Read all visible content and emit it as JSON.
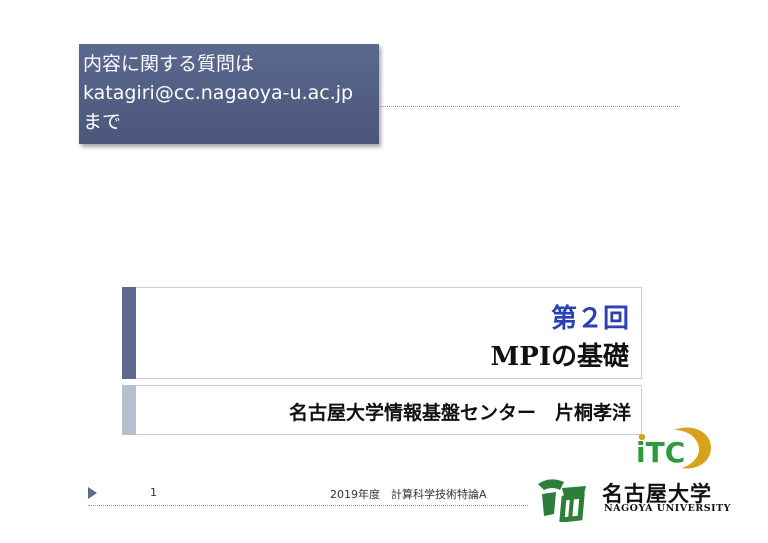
{
  "contact": {
    "line1": "内容に関する質問は",
    "line2": "katagiri@cc.nagaoya-u.ac.jp",
    "line3": "まで"
  },
  "title": {
    "line1": "第２回",
    "line2": "MPIの基礎"
  },
  "subtitle": "名古屋大学情報基盤センター　片桐孝洋",
  "footer": {
    "page_number": "1",
    "course": "2019年度　計算科学技術特論A"
  },
  "logos": {
    "itc_label": "iTC",
    "university_name": "名古屋大学",
    "university_english": "NAGOYA UNIVERSITY"
  },
  "colors": {
    "accent": "#5b6890",
    "title_blue": "#2b3fb6",
    "itc_green": "#2f9a3c",
    "itc_gold": "#d9a21e"
  }
}
